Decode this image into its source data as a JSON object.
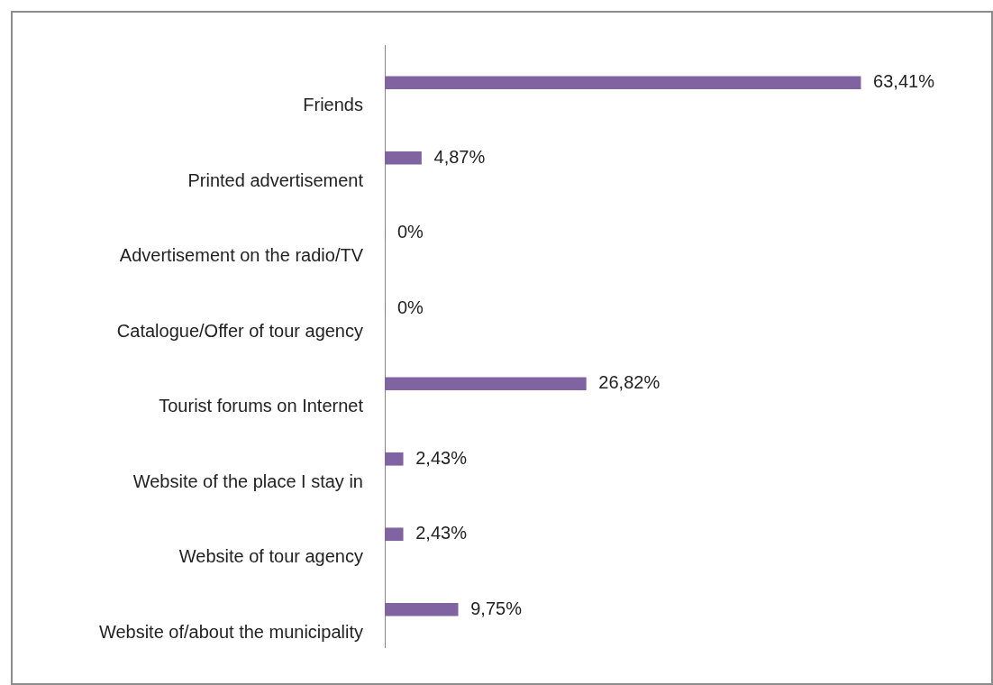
{
  "chart_data": {
    "type": "bar",
    "orientation": "horizontal",
    "categories": [
      "Friends",
      "Printed advertisement",
      "Advertisement on the radio/TV",
      "Catalogue/Offer of tour agency",
      "Tourist forums on Internet",
      "Website of the place I stay in",
      "Website of tour agency",
      "Website of/about the municipality"
    ],
    "values": [
      63.41,
      4.87,
      0,
      0,
      26.82,
      2.43,
      2.43,
      9.75
    ],
    "value_labels": [
      "63,41%",
      "4,87%",
      "0%",
      "0%",
      "26,82%",
      "2,43%",
      "2,43%",
      "9,75%"
    ],
    "color": "#8064a2",
    "legend": false
  }
}
